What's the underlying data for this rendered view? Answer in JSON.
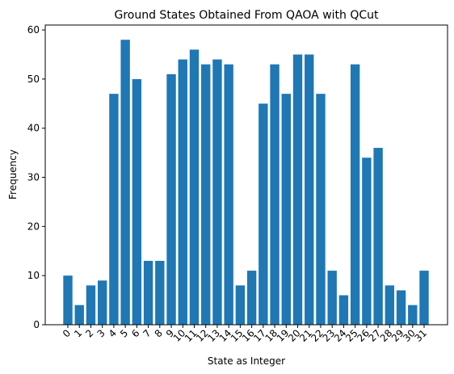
{
  "chart_data": {
    "type": "bar",
    "title": "Ground States Obtained From QAOA with QCut",
    "xlabel": "State as Integer",
    "ylabel": "Frequency",
    "categories": [
      "0",
      "1",
      "2",
      "3",
      "4",
      "5",
      "6",
      "7",
      "8",
      "9",
      "10",
      "11",
      "12",
      "13",
      "14",
      "15",
      "16",
      "17",
      "18",
      "19",
      "20",
      "21",
      "22",
      "23",
      "24",
      "25",
      "26",
      "27",
      "28",
      "29",
      "30",
      "31"
    ],
    "values": [
      10,
      4,
      8,
      9,
      47,
      58,
      50,
      13,
      13,
      51,
      54,
      56,
      53,
      54,
      53,
      8,
      11,
      45,
      53,
      47,
      55,
      55,
      47,
      11,
      6,
      53,
      34,
      36,
      8,
      7,
      4,
      11
    ],
    "ylim": [
      0,
      61
    ],
    "yticks": [
      "0",
      "10",
      "20",
      "30",
      "40",
      "50",
      "60"
    ],
    "xtick_rotation": 45,
    "grid": false,
    "bar_color": "#1f77b4"
  }
}
